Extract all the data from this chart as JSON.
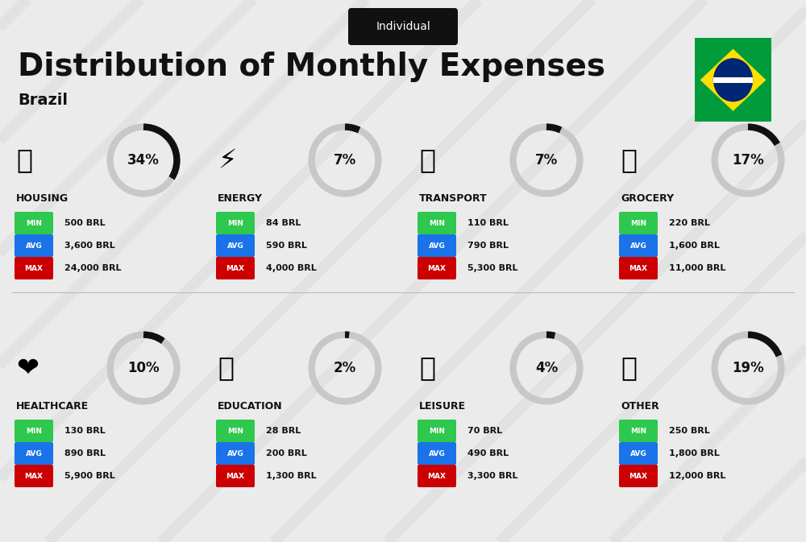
{
  "title": "Distribution of Monthly Expenses",
  "subtitle": "Individual",
  "country": "Brazil",
  "bg_color": "#ebebeb",
  "categories": [
    {
      "name": "HOUSING",
      "pct": 34,
      "min_val": "500 BRL",
      "avg_val": "3,600 BRL",
      "max_val": "24,000 BRL",
      "row": 0,
      "col": 0
    },
    {
      "name": "ENERGY",
      "pct": 7,
      "min_val": "84 BRL",
      "avg_val": "590 BRL",
      "max_val": "4,000 BRL",
      "row": 0,
      "col": 1
    },
    {
      "name": "TRANSPORT",
      "pct": 7,
      "min_val": "110 BRL",
      "avg_val": "790 BRL",
      "max_val": "5,300 BRL",
      "row": 0,
      "col": 2
    },
    {
      "name": "GROCERY",
      "pct": 17,
      "min_val": "220 BRL",
      "avg_val": "1,600 BRL",
      "max_val": "11,000 BRL",
      "row": 0,
      "col": 3
    },
    {
      "name": "HEALTHCARE",
      "pct": 10,
      "min_val": "130 BRL",
      "avg_val": "890 BRL",
      "max_val": "5,900 BRL",
      "row": 1,
      "col": 0
    },
    {
      "name": "EDUCATION",
      "pct": 2,
      "min_val": "28 BRL",
      "avg_val": "200 BRL",
      "max_val": "1,300 BRL",
      "row": 1,
      "col": 1
    },
    {
      "name": "LEISURE",
      "pct": 4,
      "min_val": "70 BRL",
      "avg_val": "490 BRL",
      "max_val": "3,300 BRL",
      "row": 1,
      "col": 2
    },
    {
      "name": "OTHER",
      "pct": 19,
      "min_val": "250 BRL",
      "avg_val": "1,800 BRL",
      "max_val": "12,000 BRL",
      "row": 1,
      "col": 3
    }
  ],
  "min_color": "#2dc84d",
  "avg_color": "#1a73e8",
  "max_color": "#cc0000",
  "text_color": "#111111",
  "donut_active_color": "#111111",
  "donut_inactive_color": "#c8c8c8",
  "stripe_color": "#d8d8d8",
  "title_fontsize": 28,
  "subtitle_fontsize": 10,
  "country_fontsize": 14,
  "category_fontsize": 9,
  "value_fontsize": 8,
  "badge_fontsize": 6.5,
  "donut_fontsize": 12,
  "icon_fontsize": 24
}
